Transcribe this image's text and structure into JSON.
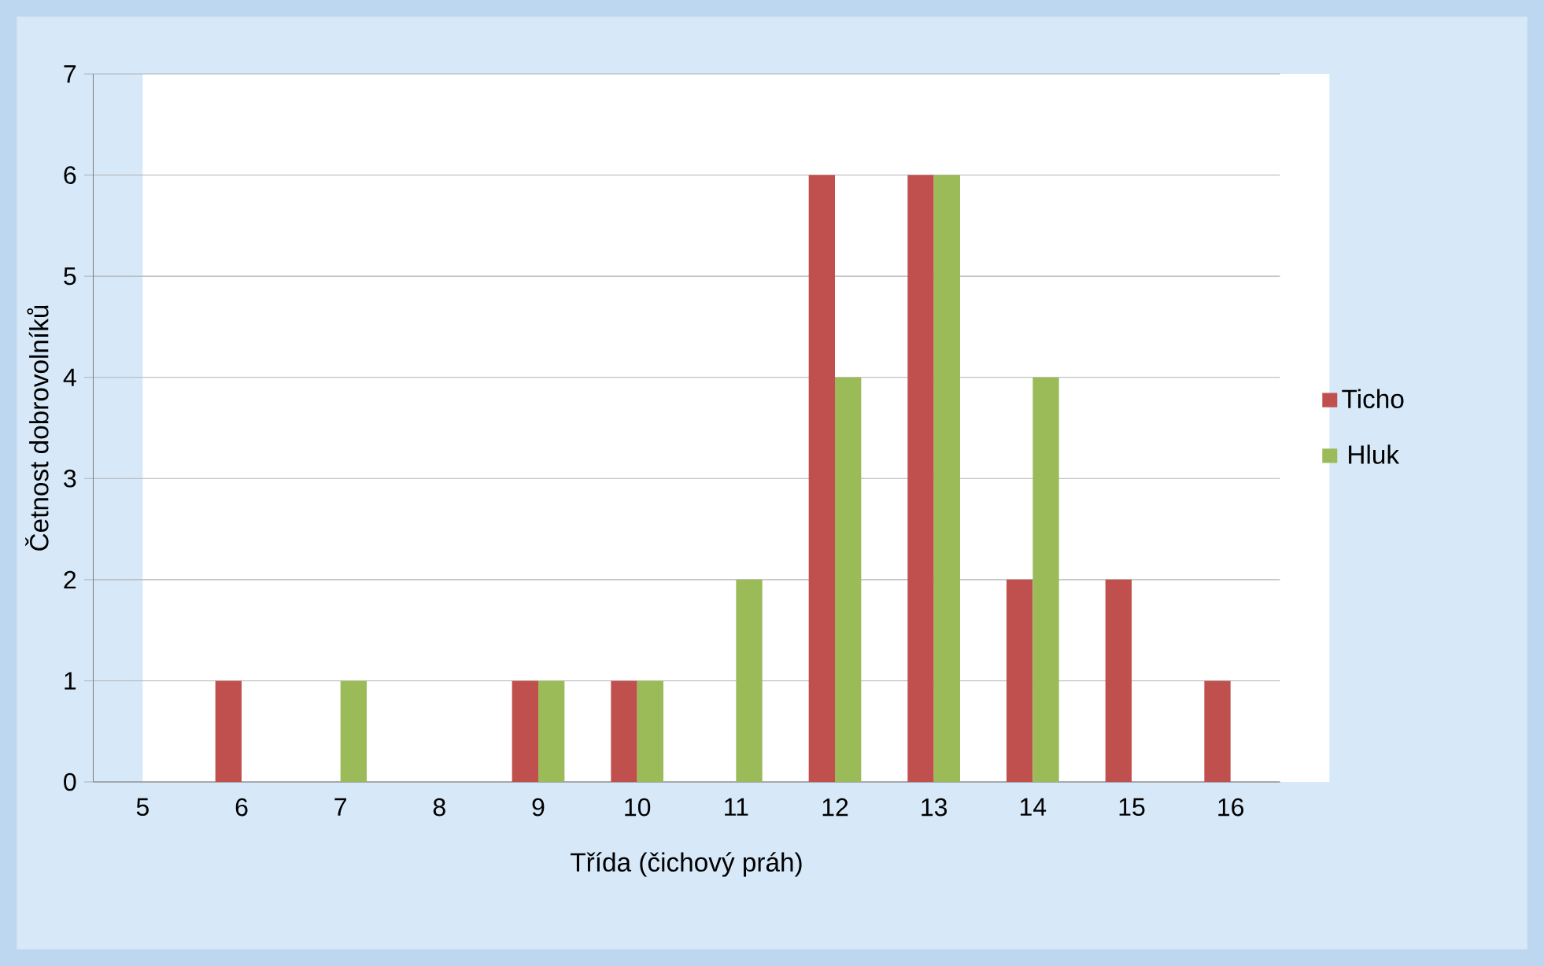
{
  "chart_data": {
    "type": "bar",
    "xlabel": "Třída (čichový práh)",
    "ylabel": "Četnost dobrovolníků",
    "categories": [
      "5",
      "6",
      "7",
      "8",
      "9",
      "10",
      "11",
      "12",
      "13",
      "14",
      "15",
      "16"
    ],
    "series": [
      {
        "name": "Ticho",
        "color": "#c0504d",
        "values": [
          0,
          1,
          0,
          0,
          1,
          1,
          0,
          6,
          6,
          2,
          2,
          1
        ]
      },
      {
        "name": "Hluk",
        "color": "#9bbb59",
        "values": [
          0,
          0,
          1,
          0,
          1,
          1,
          2,
          4,
          6,
          4,
          0,
          0
        ]
      }
    ],
    "ylim": [
      0,
      7
    ],
    "yticks": [
      0,
      1,
      2,
      3,
      4,
      5,
      6,
      7
    ],
    "grid": "y",
    "legend": "right"
  }
}
